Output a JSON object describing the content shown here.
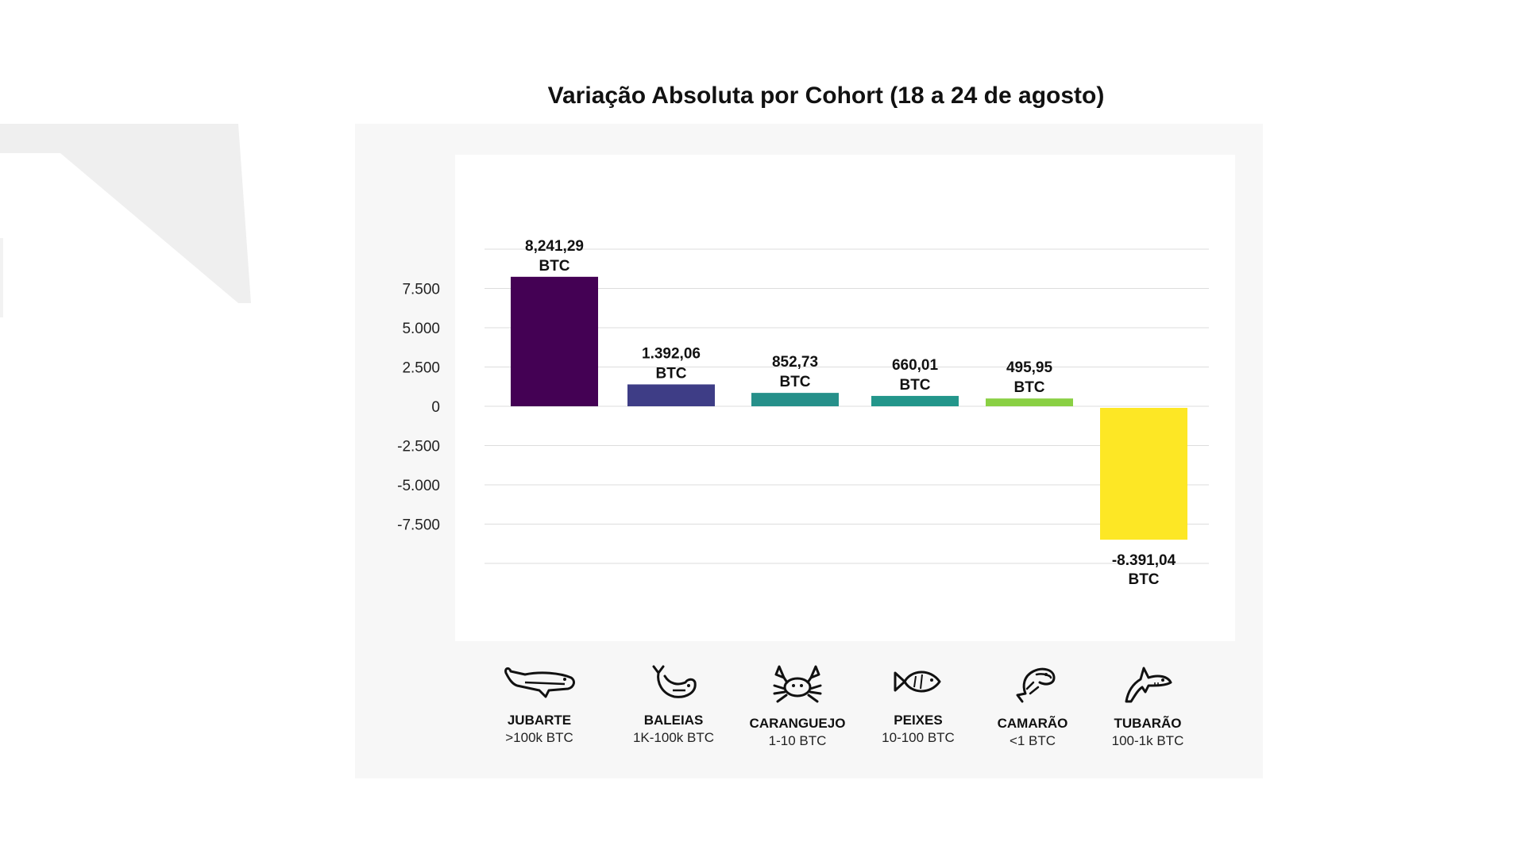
{
  "title": "Variação Absoluta por Cohort (18 a 24 de agosto)",
  "colors": {
    "background": "#ffffff",
    "panel": "#f7f7f7",
    "plot": "#ffffff",
    "grid": "#dddddd",
    "decoration": "#efefef"
  },
  "chart_data": {
    "type": "bar",
    "title": "Variação Absoluta por Cohort (18 a 24 de agosto)",
    "xlabel": "",
    "ylabel": "",
    "ylim": [
      -10000,
      10000
    ],
    "yticks": [
      {
        "value": 7500,
        "label": "7.500"
      },
      {
        "value": 5000,
        "label": "5.000"
      },
      {
        "value": 2500,
        "label": "2.500"
      },
      {
        "value": 0,
        "label": "0"
      },
      {
        "value": -2500,
        "label": "-2.500"
      },
      {
        "value": -5000,
        "label": "-5.000"
      },
      {
        "value": -7500,
        "label": "-7.500"
      }
    ],
    "grid": true,
    "legend": "none",
    "categories": [
      "JUBARTE",
      "BALEIAS",
      "CARANGUEJO",
      "PEIXES",
      "CAMARÃO",
      "TUBARÃO"
    ],
    "values": [
      8241.29,
      1392.06,
      852.73,
      660.01,
      495.95,
      -8391.04
    ],
    "value_labels": [
      "8,241,29",
      "1.392,06",
      "852,73",
      "660,01",
      "495,95",
      "-8.391,04"
    ],
    "unit_label": "BTC",
    "bar_colors": [
      "#440154",
      "#3e3d86",
      "#26908a",
      "#23968b",
      "#8ad044",
      "#fde725"
    ]
  },
  "cohorts": [
    {
      "name": "JUBARTE",
      "range": ">100k BTC",
      "icon": "humpback-whale-icon"
    },
    {
      "name": "BALEIAS",
      "range": "1K-100k BTC",
      "icon": "whale-icon"
    },
    {
      "name": "CARANGUEJO",
      "range": "1-10 BTC",
      "icon": "crab-icon"
    },
    {
      "name": "PEIXES",
      "range": "10-100 BTC",
      "icon": "fish-icon"
    },
    {
      "name": "CAMARÃO",
      "range": "<1 BTC",
      "icon": "shrimp-icon"
    },
    {
      "name": "TUBARÃO",
      "range": "100-1k BTC",
      "icon": "shark-icon"
    }
  ]
}
